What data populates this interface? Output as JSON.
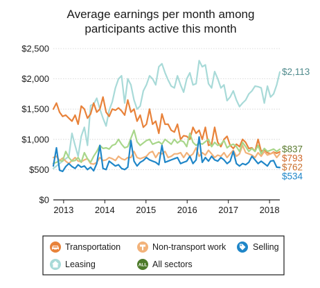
{
  "chart_data": {
    "type": "line",
    "title": "Average earnings per month among participants active this month",
    "title_lines": [
      "Average earnings per month among",
      "participants active this month"
    ],
    "xlabel": "",
    "ylabel": "",
    "x_ticks": [
      2013,
      2014,
      2015,
      2016,
      2017,
      2018
    ],
    "y_ticks": [
      0,
      500,
      1000,
      1500,
      2000,
      2500
    ],
    "y_tick_labels": [
      "$0",
      "$500",
      "$1,000",
      "$1,500",
      "$2,000",
      "$2,500"
    ],
    "xlim": [
      2012.75,
      2018.25
    ],
    "ylim": [
      0,
      2500
    ],
    "grid": true,
    "legend_position": "bottom",
    "series": [
      {
        "name": "Leasing",
        "color": "#a8dad8",
        "end_label": "$2,113",
        "end_label_color": "#4f8a8c",
        "values": [
          520,
          560,
          600,
          640,
          680,
          720,
          1100,
          900,
          720,
          1050,
          1200,
          900,
          1560,
          1580,
          1680,
          1500,
          1350,
          1220,
          1480,
          1620,
          1850,
          2000,
          2050,
          1600,
          2000,
          1900,
          1650,
          1500,
          1550,
          1800,
          1900,
          2050,
          2000,
          1900,
          2200,
          2250,
          2100,
          1980,
          1880,
          1850,
          2050,
          1900,
          1780,
          2000,
          2100,
          1900,
          1920,
          2300,
          2200,
          2230,
          1920,
          1850,
          2120,
          2000,
          1850,
          1900,
          1640,
          1700,
          1800,
          1650,
          1540,
          1600,
          1650,
          1750,
          1800,
          1880,
          1870,
          1850,
          1600,
          1880,
          1700,
          1750,
          1900,
          2113
        ]
      },
      {
        "name": "Transportation",
        "color": "#e8823a",
        "end_label": "$793",
        "end_label_color": "#d06628",
        "values": [
          1500,
          1600,
          1450,
          1380,
          1400,
          1350,
          1300,
          1400,
          1250,
          1550,
          1500,
          1350,
          1420,
          1600,
          1450,
          1500,
          1700,
          1450,
          1380,
          1500,
          1480,
          1520,
          1470,
          1400,
          1650,
          1450,
          1500,
          1300,
          1400,
          1200,
          1250,
          1500,
          1250,
          1300,
          1100,
          1420,
          1250,
          1250,
          1150,
          1120,
          1250,
          1000,
          1060,
          1050,
          1000,
          1200,
          1100,
          1150,
          1000,
          1200,
          900,
          920,
          1200,
          950,
          880,
          1000,
          1050,
          900,
          850,
          920,
          880,
          1000,
          950,
          850,
          860,
          800,
          1000,
          800,
          830,
          780,
          760,
          790,
          770,
          793
        ]
      },
      {
        "name": "Non-transport work",
        "color": "#f2b27a",
        "end_label": "$762",
        "end_label_color": "#c9702d",
        "values": [
          700,
          720,
          650,
          690,
          640,
          600,
          650,
          700,
          640,
          630,
          660,
          680,
          600,
          590,
          620,
          700,
          650,
          660,
          700,
          680,
          650,
          720,
          680,
          660,
          700,
          700,
          800,
          700,
          680,
          700,
          720,
          780,
          800,
          700,
          780,
          760,
          800,
          700,
          720,
          760,
          760,
          780,
          700,
          780,
          720,
          760,
          860,
          720,
          780,
          740,
          820,
          760,
          700,
          740,
          720,
          780,
          700,
          760,
          820,
          720,
          760,
          900,
          780,
          760,
          740,
          700,
          780,
          720,
          800,
          740,
          760,
          780,
          700,
          762
        ]
      },
      {
        "name": "All sectors",
        "color": "#a8d68a",
        "end_label": "$837",
        "end_label_color": "#5a7a2e",
        "values": [
          600,
          620,
          650,
          640,
          800,
          700,
          640,
          650,
          700,
          620,
          780,
          680,
          620,
          720,
          800,
          900,
          850,
          860,
          840,
          900,
          920,
          1000,
          920,
          860,
          880,
          1020,
          1150,
          960,
          900,
          940,
          980,
          1000,
          920,
          940,
          960,
          920,
          1000,
          960,
          920,
          1000,
          940,
          980,
          960,
          880,
          1100,
          950,
          900,
          940,
          920,
          960,
          1000,
          880,
          950,
          900,
          920,
          980,
          860,
          900,
          920,
          880,
          800,
          950,
          880,
          800,
          850,
          800,
          900,
          760,
          850,
          800,
          820,
          840,
          800,
          837
        ]
      },
      {
        "name": "Selling",
        "color": "#1f86c8",
        "end_label": "$534",
        "end_label_color": "#1f86c8",
        "values": [
          560,
          860,
          490,
          470,
          550,
          600,
          550,
          520,
          580,
          540,
          560,
          500,
          540,
          480,
          600,
          900,
          520,
          500,
          640,
          600,
          560,
          580,
          520,
          500,
          540,
          980,
          640,
          560,
          620,
          650,
          700,
          660,
          640,
          620,
          580,
          900,
          620,
          640,
          660,
          680,
          700,
          600,
          620,
          640,
          720,
          600,
          660,
          1040,
          620,
          700,
          640,
          720,
          660,
          640,
          700,
          660,
          600,
          640,
          800,
          600,
          560,
          600,
          580,
          620,
          720,
          660,
          600,
          640,
          600,
          560,
          640,
          650,
          540,
          534
        ]
      }
    ]
  },
  "legend": {
    "items": [
      {
        "label": "Transportation",
        "icon": "car-icon",
        "color": "#e8823a"
      },
      {
        "label": "Non-transport work",
        "icon": "wrench-icon",
        "color": "#f2b27a"
      },
      {
        "label": "Selling",
        "icon": "tag-icon",
        "color": "#1f86c8"
      },
      {
        "label": "Leasing",
        "icon": "house-icon",
        "color": "#a8dad8"
      },
      {
        "label": "All sectors",
        "icon": "all-badge-icon",
        "color": "#4d7a2a",
        "badge_text": "ALL"
      }
    ]
  }
}
